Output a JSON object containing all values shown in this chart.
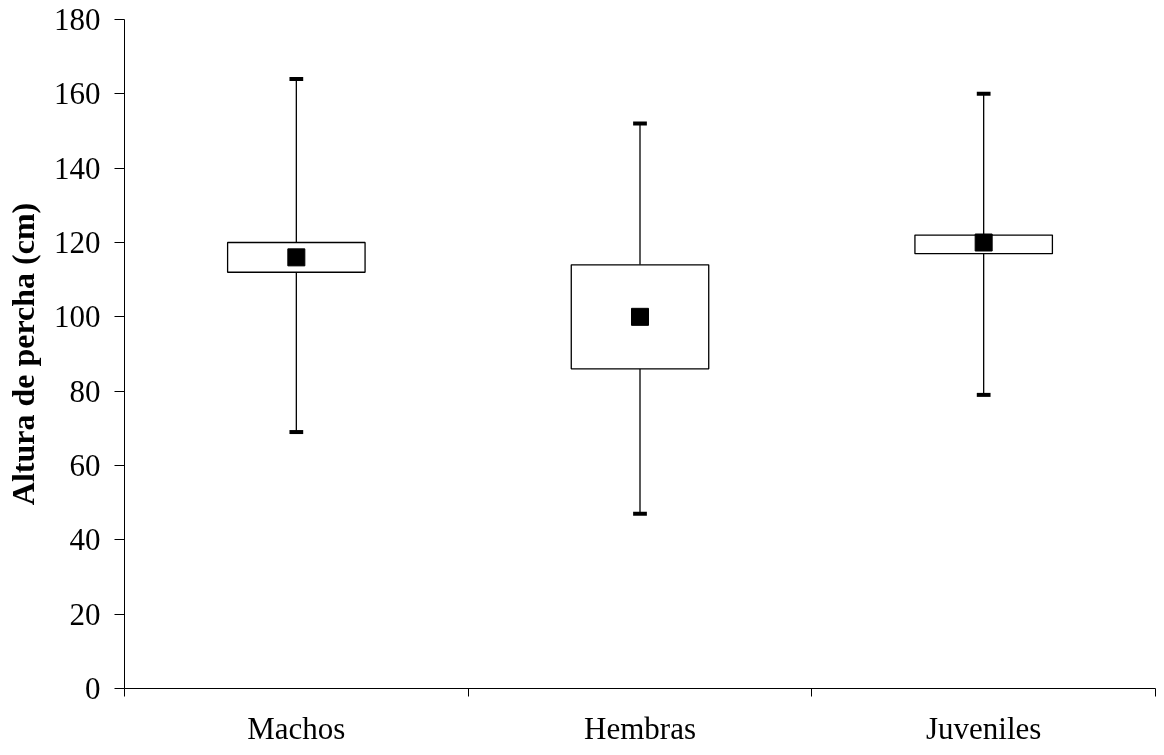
{
  "chart_data": {
    "type": "box",
    "ylabel": "Altura de percha (cm)",
    "categories": [
      "Machos",
      "Hembras",
      "Juveniles"
    ],
    "boxes": [
      {
        "low": 69,
        "q1": 112,
        "median": 116,
        "q3": 120,
        "high": 164
      },
      {
        "low": 47,
        "q1": 86,
        "median": 100,
        "q3": 114,
        "high": 152
      },
      {
        "low": 79,
        "q1": 117,
        "median": 120,
        "q3": 122,
        "high": 160
      }
    ],
    "ylim": [
      0,
      180
    ],
    "yticks": [
      0,
      20,
      40,
      60,
      80,
      100,
      120,
      140,
      160,
      180
    ],
    "marker": "square"
  }
}
